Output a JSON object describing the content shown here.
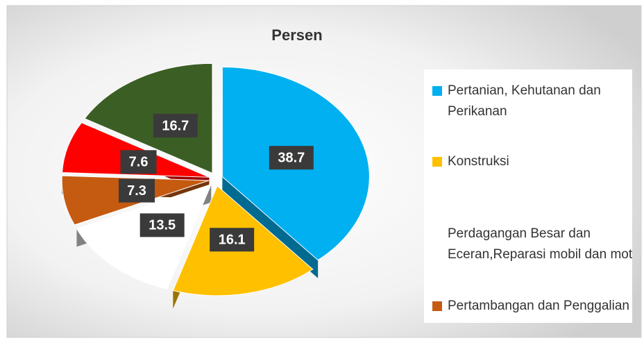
{
  "chart_data": {
    "type": "pie",
    "title": "Persen",
    "categories": [
      "Pertanian, Kehutanan dan Perikanan",
      "Konstruksi",
      "Perdagangan Besar dan Eceran,Reparasi mobil dan motor",
      "Pertambangan dan Penggalian",
      null,
      null
    ],
    "values": [
      38.7,
      16.1,
      13.5,
      7.3,
      7.6,
      16.7
    ],
    "colors": [
      "#00b0f0",
      "#ffc000",
      "#ffffff",
      "#c55a11",
      "#ff0000",
      "#3b5e24"
    ],
    "legend": "right"
  }
}
